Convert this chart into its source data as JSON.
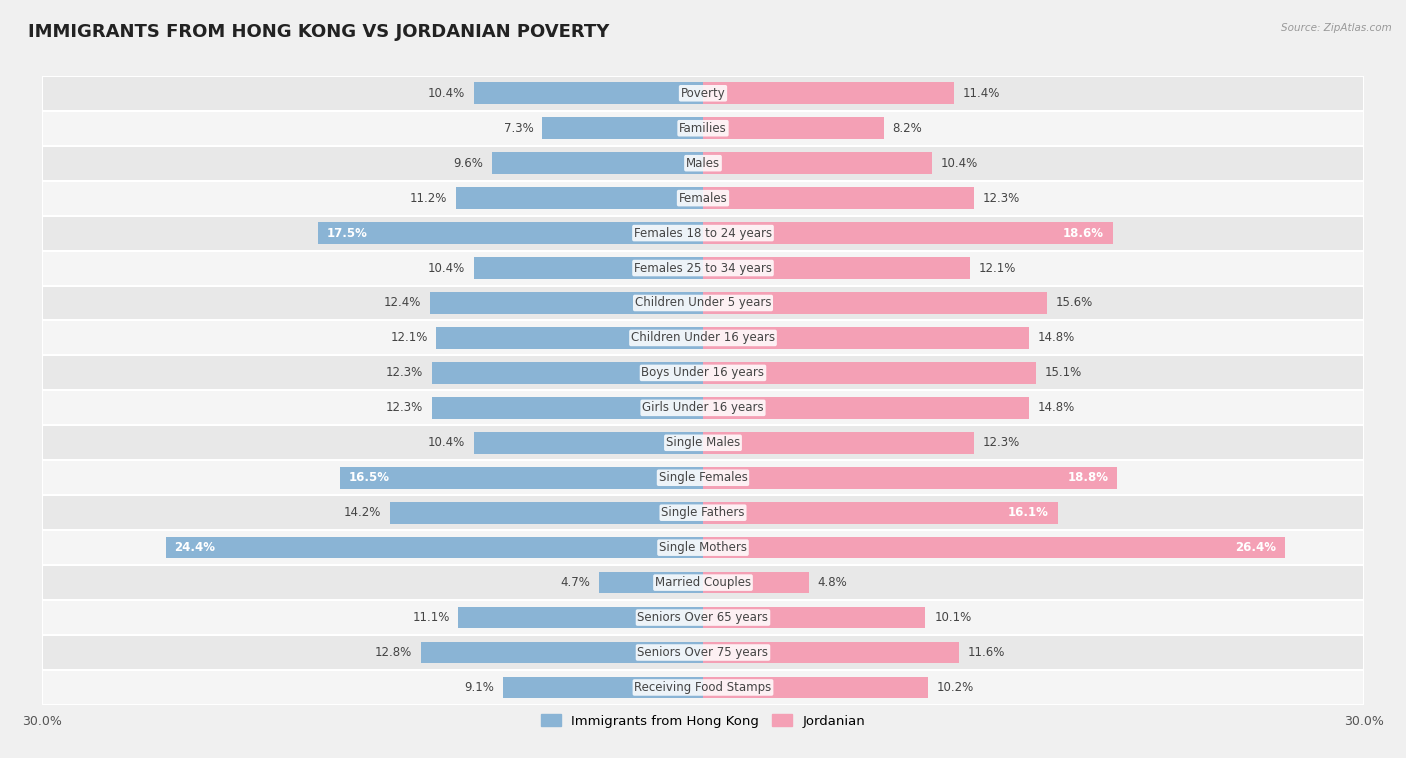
{
  "title": "IMMIGRANTS FROM HONG KONG VS JORDANIAN POVERTY",
  "source": "Source: ZipAtlas.com",
  "categories": [
    "Poverty",
    "Families",
    "Males",
    "Females",
    "Females 18 to 24 years",
    "Females 25 to 34 years",
    "Children Under 5 years",
    "Children Under 16 years",
    "Boys Under 16 years",
    "Girls Under 16 years",
    "Single Males",
    "Single Females",
    "Single Fathers",
    "Single Mothers",
    "Married Couples",
    "Seniors Over 65 years",
    "Seniors Over 75 years",
    "Receiving Food Stamps"
  ],
  "hk_values": [
    10.4,
    7.3,
    9.6,
    11.2,
    17.5,
    10.4,
    12.4,
    12.1,
    12.3,
    12.3,
    10.4,
    16.5,
    14.2,
    24.4,
    4.7,
    11.1,
    12.8,
    9.1
  ],
  "jd_values": [
    11.4,
    8.2,
    10.4,
    12.3,
    18.6,
    12.1,
    15.6,
    14.8,
    15.1,
    14.8,
    12.3,
    18.8,
    16.1,
    26.4,
    4.8,
    10.1,
    11.6,
    10.2
  ],
  "hk_color": "#8ab4d5",
  "jd_color": "#f4a0b5",
  "hk_label": "Immigrants from Hong Kong",
  "jd_label": "Jordanian",
  "xlim": 30.0,
  "bar_height": 0.62,
  "bg_color": "#f0f0f0",
  "row_even_color": "#e8e8e8",
  "row_odd_color": "#f5f5f5",
  "title_fontsize": 13,
  "label_fontsize": 8.5,
  "value_fontsize": 8.5,
  "axis_label_fontsize": 9,
  "inside_threshold": 16.0
}
